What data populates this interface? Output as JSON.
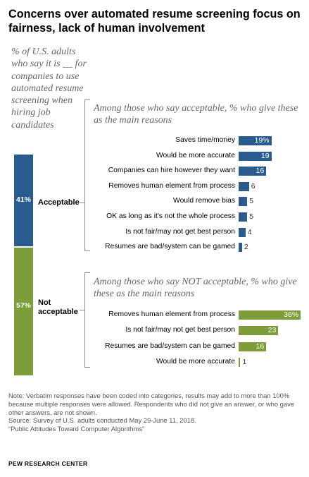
{
  "title": "Concerns over automated resume screening focus on fairness, lack of human involvement",
  "intro": "% of U.S. adults who say it is __ for companies to use automated resume screening when hiring job candidates",
  "colors": {
    "acceptable": "#2a5b8f",
    "not_acceptable": "#7e9c3a"
  },
  "chart_data": [
    {
      "type": "bar",
      "orientation": "vertical-stacked",
      "categories": [
        "Acceptable",
        "Not acceptable"
      ],
      "values": [
        41,
        57
      ],
      "value_labels": [
        "41%",
        "57%"
      ]
    },
    {
      "type": "bar",
      "orientation": "horizontal",
      "title": "Among those who say acceptable, % who give these as the main reasons",
      "categories": [
        "Saves time/money",
        "Would be more accurate",
        "Companies can hire however they want",
        "Removes human element from process",
        "Would remove bias",
        "OK as long as it's not the whole process",
        "Is not fair/may not get best person",
        "Resumes are bad/system can be gamed"
      ],
      "values": [
        19,
        19,
        16,
        6,
        5,
        5,
        4,
        2
      ],
      "value_labels": [
        "19%",
        "19",
        "16",
        "6",
        "5",
        "5",
        "4",
        "2"
      ]
    },
    {
      "type": "bar",
      "orientation": "horizontal",
      "title": "Among those who say NOT acceptable, % who give these as the main reasons",
      "categories": [
        "Removes human element from process",
        "Is not fair/may not get best person",
        "Resumes are bad/system can be gamed",
        "Would be more accurate"
      ],
      "values": [
        36,
        23,
        16,
        1
      ],
      "value_labels": [
        "36%",
        "23",
        "16",
        "1"
      ]
    }
  ],
  "note": "Note: Verbatim responses have been coded into categories, results may add to more than 100% because multiple responses were allowed. Respondents who did not give an answer, or who gave other answers, are not shown.",
  "source": "Source: Survey of U.S. adults conducted May 29-June 11, 2018.",
  "report": "“Public Attitudes Toward Computer Algorithms”",
  "org": "PEW RESEARCH CENTER"
}
